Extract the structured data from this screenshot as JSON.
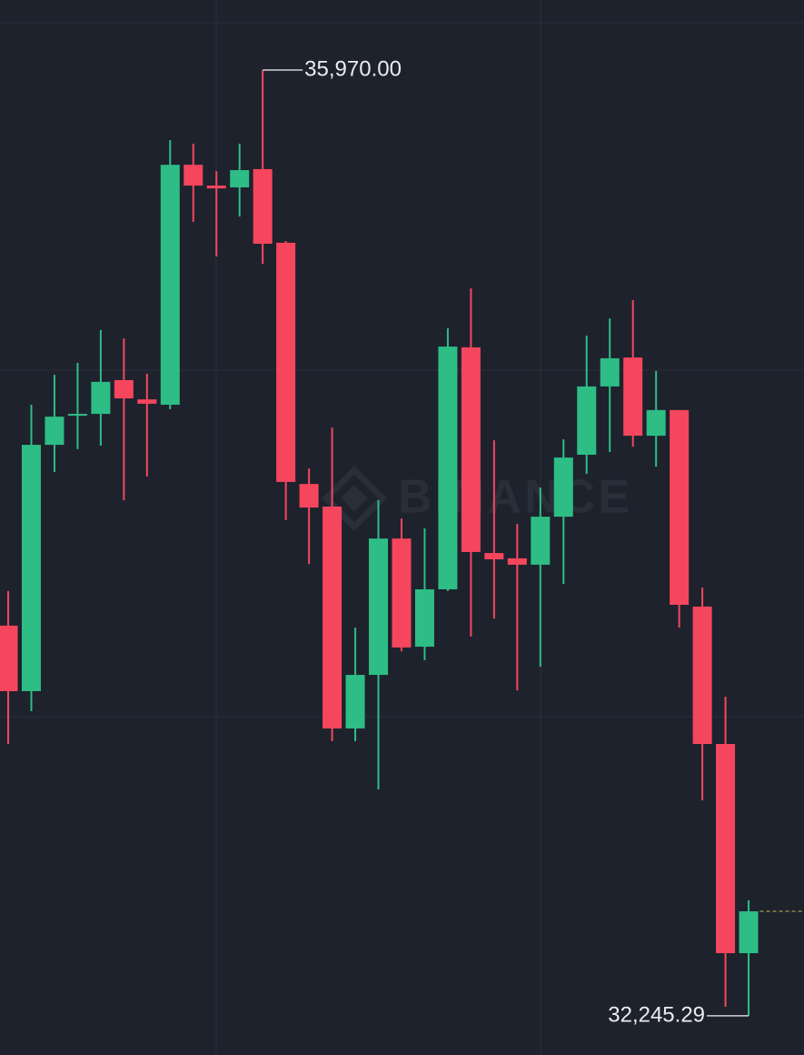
{
  "chart_data": {
    "type": "candlestick",
    "watermark": "BINANCE",
    "open": [
      33782,
      33524,
      34494,
      34609,
      34616,
      34749,
      34673,
      34652,
      35597,
      35515,
      35508,
      35580,
      35290,
      34340,
      34251,
      33377,
      33588,
      34125,
      33699,
      33925,
      34878,
      34068,
      34047,
      34022,
      34211,
      34455,
      34724,
      34838,
      34530,
      34631,
      33857,
      33316,
      32492
    ],
    "high": [
      33918,
      34652,
      34770,
      34817,
      34946,
      34913,
      34774,
      35694,
      35680,
      35572,
      35680,
      35970,
      35297,
      34401,
      34562,
      33774,
      34276,
      34204,
      34165,
      34953,
      35110,
      34512,
      34183,
      34326,
      34516,
      34924,
      34992,
      35064,
      34785,
      34631,
      33932,
      33502,
      32700
    ],
    "low": [
      33316,
      33445,
      34387,
      34477,
      34491,
      34276,
      34369,
      34634,
      35372,
      35236,
      35393,
      35207,
      34197,
      34025,
      33327,
      33327,
      33137,
      33681,
      33646,
      33918,
      33739,
      33810,
      33527,
      33620,
      33946,
      34380,
      34466,
      34487,
      34408,
      33774,
      33094,
      32281,
      32245.29
    ],
    "close": [
      33524,
      34494,
      34605,
      34616,
      34742,
      34677,
      34656,
      35597,
      35515,
      35504,
      35576,
      35286,
      34348,
      34247,
      33377,
      33588,
      34125,
      33696,
      33925,
      34881,
      34072,
      34043,
      34022,
      34211,
      34444,
      34724,
      34835,
      34530,
      34631,
      33864,
      33316,
      32492,
      32657
    ],
    "up_color": "#2ebd85",
    "down_color": "#f6465d",
    "ylim": [
      32091,
      36246
    ],
    "high_annotation": {
      "value": 35970,
      "label": "35,970.00"
    },
    "low_annotation": {
      "value": 32245.29,
      "label": "32,245.29"
    }
  }
}
